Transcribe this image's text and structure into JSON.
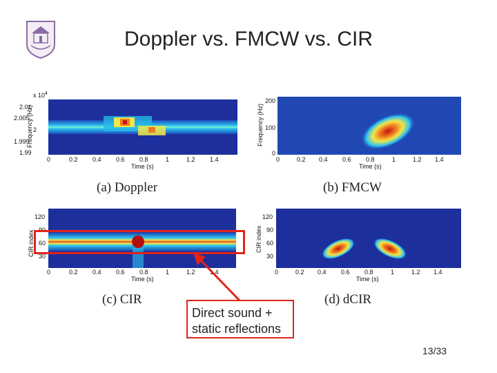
{
  "slide": {
    "title": "Doppler vs. FMCW vs. CIR",
    "page_number": "13/33",
    "callout": {
      "line1": "Direct sound  +",
      "line2": "static reflections"
    },
    "accent_color": "#e2231a",
    "logo_icon": "university-seal-icon"
  },
  "panels": [
    {
      "id": "a",
      "caption": "(a)  Doppler",
      "ylabel": "Frequency (Hz)",
      "xlabel": "Time (s)",
      "y_multiplier": "x 10",
      "y_multiplier_exp": "4",
      "yticks": [
        "2.01",
        "2.005",
        "2",
        "1.995",
        "1.99"
      ],
      "xticks": [
        "0",
        "0.2",
        "0.4",
        "0.6",
        "0.8",
        "1",
        "1.2",
        "1.4"
      ]
    },
    {
      "id": "b",
      "caption": "(b)  FMCW",
      "ylabel": "Frequency (Hz)",
      "xlabel": "Time (s)",
      "yticks": [
        "200",
        "100",
        "0"
      ],
      "xticks": [
        "0",
        "0.2",
        "0.4",
        "0.6",
        "0.8",
        "1",
        "1.2",
        "1.4"
      ]
    },
    {
      "id": "c",
      "caption": "(c)  CIR",
      "ylabel": "CIR index",
      "xlabel": "Time (s)",
      "yticks": [
        "120",
        "90",
        "60",
        "30"
      ],
      "xticks": [
        "0",
        "0.2",
        "0.4",
        "0.6",
        "0.8",
        "1",
        "1.2",
        "1.4"
      ]
    },
    {
      "id": "d",
      "caption": "(d)  dCIR",
      "ylabel": "CIR index",
      "xlabel": "Time (s)",
      "yticks": [
        "120",
        "90",
        "60",
        "30"
      ],
      "xticks": [
        "0",
        "0.2",
        "0.4",
        "0.6",
        "0.8",
        "1",
        "1.2",
        "1.4"
      ]
    }
  ]
}
